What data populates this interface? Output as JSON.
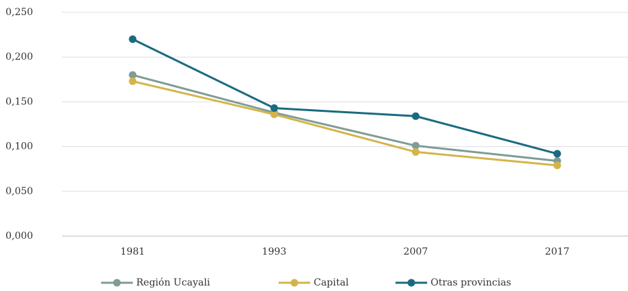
{
  "chart_data": {
    "type": "line",
    "categories": [
      "1981",
      "1993",
      "2007",
      "2017"
    ],
    "series": [
      {
        "name": "Región Ucayali",
        "color": "#7f9c96",
        "values": [
          0.18,
          0.138,
          0.101,
          0.084
        ]
      },
      {
        "name": "Capital",
        "color": "#d4b44a",
        "values": [
          0.173,
          0.136,
          0.094,
          0.079
        ]
      },
      {
        "name": "Otras provincias",
        "color": "#1b6b80",
        "values": [
          0.22,
          0.143,
          0.134,
          0.092
        ]
      }
    ],
    "ylim": [
      0,
      0.25
    ],
    "yticks": [
      {
        "value": 0,
        "label": "0,000"
      },
      {
        "value": 0.05,
        "label": "0,050"
      },
      {
        "value": 0.1,
        "label": "0,100"
      },
      {
        "value": 0.15,
        "label": "0,150"
      },
      {
        "value": 0.2,
        "label": "0,200"
      },
      {
        "value": 0.25,
        "label": "0,250"
      }
    ],
    "grid": true,
    "legend": "bottom"
  }
}
